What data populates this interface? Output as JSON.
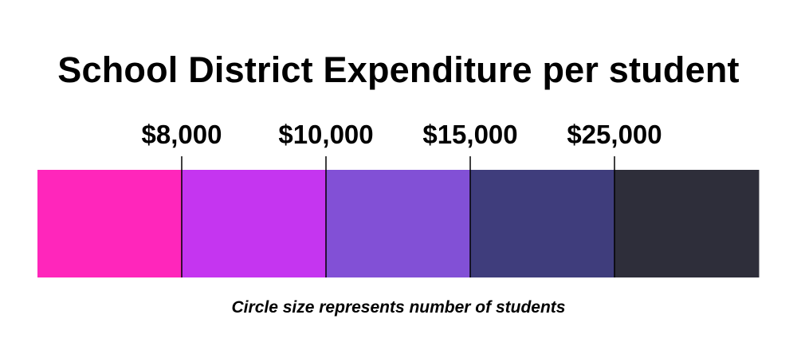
{
  "chart_data": {
    "type": "bar",
    "title": "School District Expenditure per student",
    "thresholds": [
      "$8,000",
      "$10,000",
      "$15,000",
      "$25,000"
    ],
    "bins": [
      {
        "color": "#ff26bb"
      },
      {
        "color": "#c535f0"
      },
      {
        "color": "#8250d6"
      },
      {
        "color": "#3f3d7c"
      },
      {
        "color": "#2e2e3a"
      }
    ],
    "note": "Circle size represents number of students"
  }
}
